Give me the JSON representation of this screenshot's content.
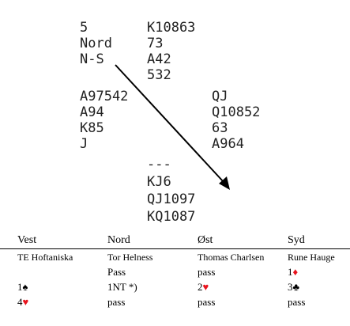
{
  "colors": {
    "red": "#e8141e",
    "black": "#000000",
    "text": "#222222"
  },
  "deal": {
    "board": "5",
    "dealer": "Nord",
    "vulnerability": "N-S",
    "north": [
      "K10863",
      "73",
      "A42",
      "532"
    ],
    "west": [
      "A97542",
      "A94",
      "K85",
      "J"
    ],
    "east": [
      "QJ",
      "Q10852",
      "63",
      "A964"
    ],
    "south": [
      "---",
      "KJ6",
      "QJ1097",
      "KQ1087"
    ]
  },
  "auction": {
    "headers": [
      "Vest",
      "Nord",
      "Øst",
      "Syd"
    ],
    "players": [
      "TE Hoftaniska",
      "Tor Helness",
      "Thomas Charlsen",
      "Rune Hauge"
    ],
    "rows": [
      [
        {
          "text": ""
        },
        {
          "text": "Pass"
        },
        {
          "text": "pass"
        },
        {
          "text": "1",
          "suit": "♦",
          "suit_color": "red"
        }
      ],
      [
        {
          "text": "1",
          "suit": "♠",
          "suit_color": "black"
        },
        {
          "text": "1NT *)"
        },
        {
          "text": "2",
          "suit": "♥",
          "suit_color": "red"
        },
        {
          "text": "3",
          "suit": "♣",
          "suit_color": "black"
        }
      ],
      [
        {
          "text": "4",
          "suit": "♥",
          "suit_color": "red"
        },
        {
          "text": "pass"
        },
        {
          "text": "pass"
        },
        {
          "text": "pass"
        }
      ]
    ]
  }
}
